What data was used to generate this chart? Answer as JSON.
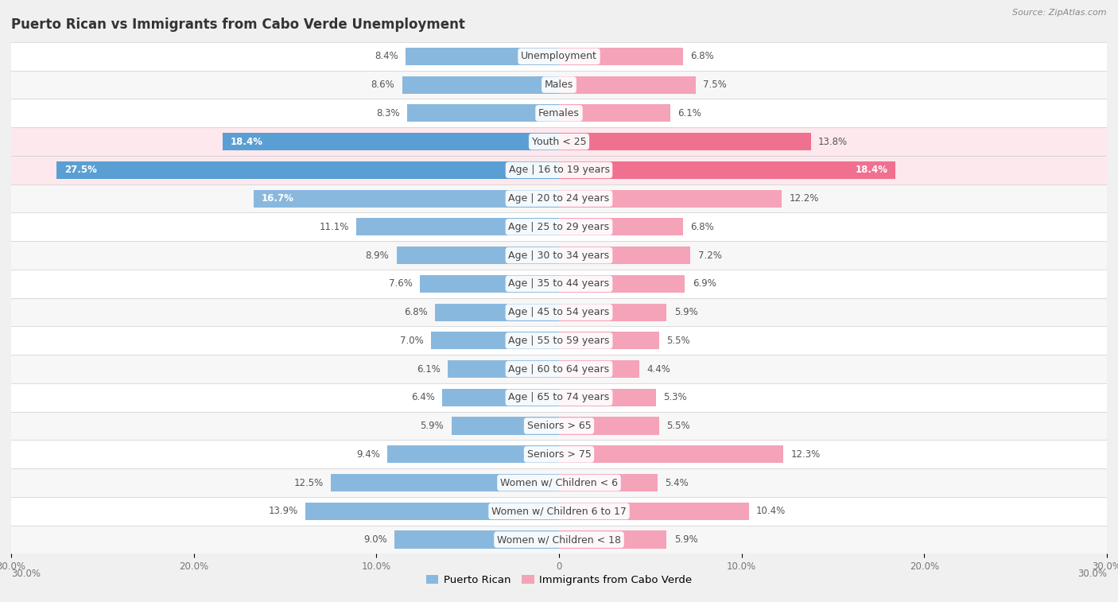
{
  "title": "Puerto Rican vs Immigrants from Cabo Verde Unemployment",
  "source": "Source: ZipAtlas.com",
  "categories": [
    "Unemployment",
    "Males",
    "Females",
    "Youth < 25",
    "Age | 16 to 19 years",
    "Age | 20 to 24 years",
    "Age | 25 to 29 years",
    "Age | 30 to 34 years",
    "Age | 35 to 44 years",
    "Age | 45 to 54 years",
    "Age | 55 to 59 years",
    "Age | 60 to 64 years",
    "Age | 65 to 74 years",
    "Seniors > 65",
    "Seniors > 75",
    "Women w/ Children < 6",
    "Women w/ Children 6 to 17",
    "Women w/ Children < 18"
  ],
  "puerto_rican": [
    8.4,
    8.6,
    8.3,
    18.4,
    27.5,
    16.7,
    11.1,
    8.9,
    7.6,
    6.8,
    7.0,
    6.1,
    6.4,
    5.9,
    9.4,
    12.5,
    13.9,
    9.0
  ],
  "cabo_verde": [
    6.8,
    7.5,
    6.1,
    13.8,
    18.4,
    12.2,
    6.8,
    7.2,
    6.9,
    5.9,
    5.5,
    4.4,
    5.3,
    5.5,
    12.3,
    5.4,
    10.4,
    5.9
  ],
  "pr_color_normal": "#89b8de",
  "cv_color_normal": "#f4a3b8",
  "pr_color_highlight": "#5a9fd4",
  "cv_color_highlight": "#f07090",
  "axis_max": 30.0,
  "row_bg_light": "#f7f7f7",
  "row_bg_white": "#ffffff",
  "highlight_row_bg": "#fce8ed",
  "background_color": "#f0f0f0",
  "bar_height": 0.62,
  "label_threshold": 14.0,
  "tick_positions": [
    -30,
    -20,
    -10,
    0,
    10,
    20,
    30
  ],
  "tick_labels": [
    "30.0%",
    "20.0%",
    "10.0%",
    "0",
    "10.0%",
    "20.0%",
    "30.0%"
  ]
}
